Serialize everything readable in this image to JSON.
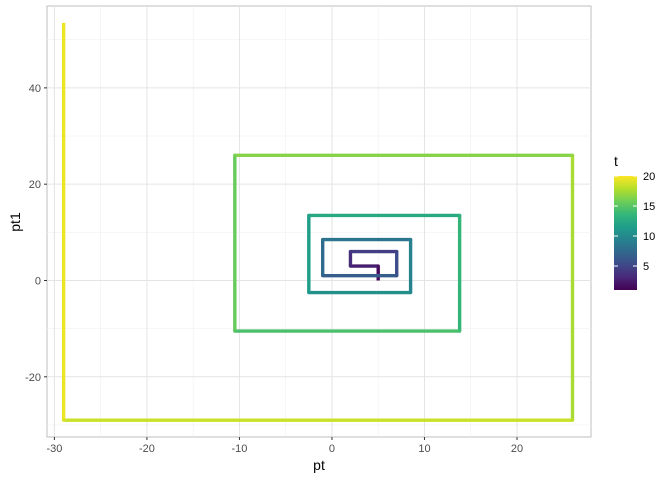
{
  "chart_data": {
    "type": "line",
    "xlabel": "pt",
    "ylabel": "pt1",
    "xlim": [
      -30.8,
      28.0
    ],
    "ylim": [
      -32.5,
      57.0
    ],
    "x_ticks": [
      -30,
      -20,
      -10,
      0,
      10,
      20
    ],
    "x_tick_labels": [
      "-30",
      "-20",
      "-10",
      "0",
      "10",
      "20"
    ],
    "y_ticks": [
      -20,
      0,
      20,
      40
    ],
    "y_tick_labels": [
      "-20",
      "0",
      "20",
      "40"
    ],
    "grid": true,
    "legend": {
      "title": "t",
      "placement": "right",
      "min": 1,
      "max": 20,
      "breaks": [
        5,
        10,
        15,
        20
      ],
      "break_labels": [
        "5",
        "10",
        "15",
        "20"
      ]
    },
    "colorscale": [
      "#440154",
      "#482878",
      "#3e4989",
      "#31688e",
      "#26828e",
      "#1f9e89",
      "#35b779",
      "#6ece58",
      "#b5de2b",
      "#fde725"
    ],
    "points": [
      {
        "t": 1,
        "x": 5,
        "y": 0
      },
      {
        "t": 2,
        "x": 5,
        "y": 3
      },
      {
        "t": 3,
        "x": 2,
        "y": 3
      },
      {
        "t": 4,
        "x": 2,
        "y": 6
      },
      {
        "t": 5,
        "x": 7,
        "y": 6
      },
      {
        "t": 6,
        "x": 7,
        "y": 1
      },
      {
        "t": 7,
        "x": -1,
        "y": 1
      },
      {
        "t": 8,
        "x": -1,
        "y": 8.5
      },
      {
        "t": 9,
        "x": 8.5,
        "y": 8.5
      },
      {
        "t": 10,
        "x": 8.5,
        "y": -2.5
      },
      {
        "t": 11,
        "x": -2.5,
        "y": -2.5
      },
      {
        "t": 12,
        "x": -2.5,
        "y": 13.5
      },
      {
        "t": 13,
        "x": 13.8,
        "y": 13.5
      },
      {
        "t": 14,
        "x": 13.8,
        "y": -10.5
      },
      {
        "t": 15,
        "x": -10.5,
        "y": -10.5
      },
      {
        "t": 16,
        "x": -10.5,
        "y": 26
      },
      {
        "t": 17,
        "x": 26,
        "y": 26
      },
      {
        "t": 18,
        "x": 26,
        "y": -29
      },
      {
        "t": 19,
        "x": -29,
        "y": -29
      },
      {
        "t": 20,
        "x": -29,
        "y": 53.5
      }
    ]
  }
}
